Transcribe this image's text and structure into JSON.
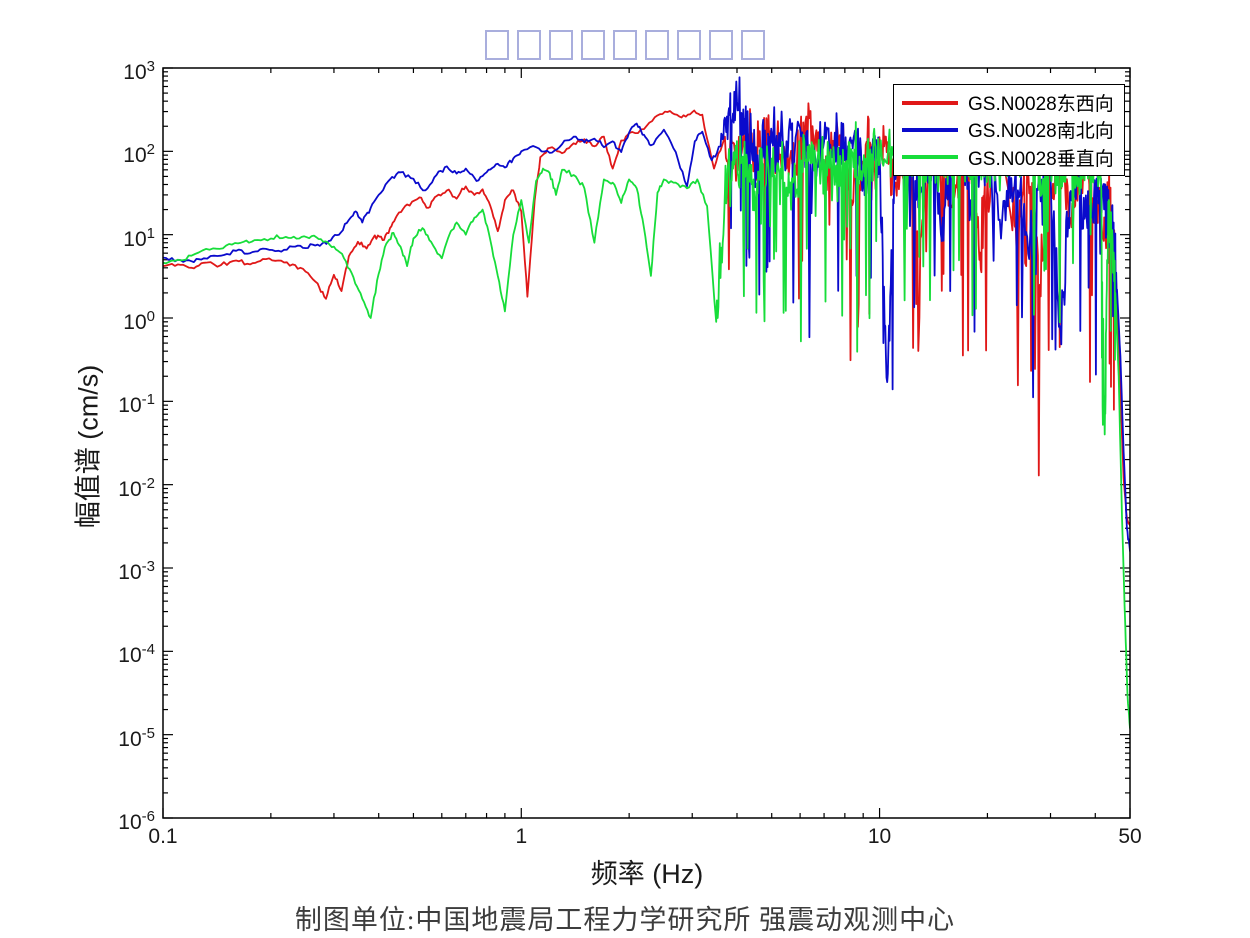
{
  "chart_data": {
    "type": "line",
    "title": {
      "rendered_as_missing_glyph_boxes": true,
      "box_count": 9,
      "box_color": "#a9aedd"
    },
    "xlabel": "频率 (Hz)",
    "ylabel": "幅值谱 (cm/s)",
    "caption": "制图单位:中国地震局工程力学研究所 强震动观测中心",
    "x_scale": "log",
    "y_scale": "log",
    "xlim": [
      0.1,
      50
    ],
    "ylim": [
      1e-06,
      1000
    ],
    "grid": false,
    "box": true,
    "x_ticks": [
      {
        "value": 0.1,
        "label": "0.1"
      },
      {
        "value": 1,
        "label": "1"
      },
      {
        "value": 10,
        "label": "10"
      },
      {
        "value": 50,
        "label": "50"
      }
    ],
    "y_tick_exponents": [
      3,
      2,
      1,
      0,
      -1,
      -2,
      -3,
      -4,
      -5,
      -6
    ],
    "legend": {
      "position": "top-right",
      "border_color": "#000000"
    },
    "hf_texture": {
      "f_start": 3.5,
      "f_end": 45,
      "samples_per_segment": 12,
      "jitter_decades": 0.45,
      "deep_spike_probability": 0.09,
      "lf_jitter_decades": 0.035,
      "seed": 11
    },
    "series": [
      {
        "name": "GS.N0028东西向",
        "color": "#e01818",
        "points": [
          [
            0.1,
            4.2
          ],
          [
            0.11,
            4.4
          ],
          [
            0.12,
            4.0
          ],
          [
            0.13,
            4.6
          ],
          [
            0.145,
            4.3
          ],
          [
            0.16,
            4.9
          ],
          [
            0.175,
            4.4
          ],
          [
            0.19,
            5.1
          ],
          [
            0.21,
            4.9
          ],
          [
            0.23,
            4.4
          ],
          [
            0.25,
            3.6
          ],
          [
            0.27,
            2.6
          ],
          [
            0.285,
            1.7
          ],
          [
            0.3,
            3.3
          ],
          [
            0.315,
            2.1
          ],
          [
            0.33,
            5.5
          ],
          [
            0.35,
            8.2
          ],
          [
            0.37,
            6.8
          ],
          [
            0.39,
            9.8
          ],
          [
            0.41,
            8.6
          ],
          [
            0.43,
            12
          ],
          [
            0.45,
            17
          ],
          [
            0.48,
            23
          ],
          [
            0.52,
            28
          ],
          [
            0.55,
            21
          ],
          [
            0.58,
            29
          ],
          [
            0.62,
            34
          ],
          [
            0.66,
            27
          ],
          [
            0.7,
            38
          ],
          [
            0.74,
            30
          ],
          [
            0.78,
            35
          ],
          [
            0.82,
            22
          ],
          [
            0.86,
            11
          ],
          [
            0.9,
            26
          ],
          [
            0.95,
            34
          ],
          [
            1.0,
            19
          ],
          [
            1.04,
            1.8
          ],
          [
            1.09,
            26
          ],
          [
            1.13,
            85
          ],
          [
            1.2,
            110
          ],
          [
            1.3,
            95
          ],
          [
            1.4,
            125
          ],
          [
            1.5,
            140
          ],
          [
            1.6,
            115
          ],
          [
            1.7,
            150
          ],
          [
            1.8,
            62
          ],
          [
            1.9,
            135
          ],
          [
            2.0,
            165
          ],
          [
            2.2,
            185
          ],
          [
            2.4,
            270
          ],
          [
            2.6,
            305
          ],
          [
            2.8,
            255
          ],
          [
            3.0,
            295
          ],
          [
            3.2,
            275
          ],
          [
            3.45,
            62
          ],
          [
            3.7,
            150
          ],
          [
            4.0,
            92
          ],
          [
            4.3,
            160
          ],
          [
            4.6,
            115
          ],
          [
            5.0,
            170
          ],
          [
            5.5,
            62
          ],
          [
            6.0,
            130
          ],
          [
            6.5,
            200
          ],
          [
            7.0,
            52
          ],
          [
            7.5,
            155
          ],
          [
            8.0,
            118
          ],
          [
            8.6,
            32
          ],
          [
            9.2,
            130
          ],
          [
            9.7,
            62
          ],
          [
            10.3,
            115
          ],
          [
            11,
            42
          ],
          [
            12,
            88
          ],
          [
            13,
            9
          ],
          [
            14,
            70
          ],
          [
            15,
            105
          ],
          [
            16,
            22
          ],
          [
            17,
            62
          ],
          [
            18,
            88
          ],
          [
            19,
            5
          ],
          [
            20,
            52
          ],
          [
            22,
            85
          ],
          [
            24,
            12
          ],
          [
            26,
            58
          ],
          [
            28,
            2.5
          ],
          [
            30,
            42
          ],
          [
            32,
            75
          ],
          [
            34,
            16
          ],
          [
            36,
            48
          ],
          [
            38,
            80
          ],
          [
            40,
            22
          ],
          [
            42,
            9
          ],
          [
            43.5,
            28
          ],
          [
            45,
            9
          ],
          [
            46,
            1.2
          ],
          [
            47,
            0.12
          ],
          [
            48,
            0.012
          ],
          [
            49,
            0.004
          ],
          [
            50,
            0.0032
          ]
        ]
      },
      {
        "name": "GS.N0028南北向",
        "color": "#0a0acc",
        "points": [
          [
            0.1,
            5.3
          ],
          [
            0.11,
            5.0
          ],
          [
            0.12,
            4.8
          ],
          [
            0.13,
            5.2
          ],
          [
            0.145,
            5.6
          ],
          [
            0.16,
            6.4
          ],
          [
            0.175,
            6.0
          ],
          [
            0.19,
            6.8
          ],
          [
            0.21,
            6.4
          ],
          [
            0.23,
            7.2
          ],
          [
            0.25,
            6.9
          ],
          [
            0.27,
            7.6
          ],
          [
            0.29,
            8.4
          ],
          [
            0.31,
            10
          ],
          [
            0.33,
            15
          ],
          [
            0.345,
            19
          ],
          [
            0.36,
            14
          ],
          [
            0.38,
            21
          ],
          [
            0.4,
            30
          ],
          [
            0.43,
            46
          ],
          [
            0.46,
            56
          ],
          [
            0.5,
            47
          ],
          [
            0.54,
            34
          ],
          [
            0.58,
            52
          ],
          [
            0.62,
            66
          ],
          [
            0.66,
            54
          ],
          [
            0.7,
            62
          ],
          [
            0.75,
            44
          ],
          [
            0.8,
            56
          ],
          [
            0.85,
            70
          ],
          [
            0.9,
            64
          ],
          [
            0.95,
            82
          ],
          [
            1.0,
            100
          ],
          [
            1.1,
            112
          ],
          [
            1.2,
            96
          ],
          [
            1.3,
            122
          ],
          [
            1.4,
            150
          ],
          [
            1.5,
            128
          ],
          [
            1.6,
            142
          ],
          [
            1.7,
            112
          ],
          [
            1.8,
            132
          ],
          [
            1.9,
            98
          ],
          [
            2.0,
            168
          ],
          [
            2.1,
            215
          ],
          [
            2.2,
            158
          ],
          [
            2.3,
            118
          ],
          [
            2.5,
            182
          ],
          [
            2.7,
            98
          ],
          [
            2.9,
            38
          ],
          [
            3.05,
            132
          ],
          [
            3.2,
            172
          ],
          [
            3.4,
            78
          ],
          [
            3.6,
            115
          ],
          [
            3.8,
            330
          ],
          [
            4.0,
            400
          ],
          [
            4.2,
            245
          ],
          [
            4.4,
            98
          ],
          [
            4.6,
            58
          ],
          [
            4.8,
            112
          ],
          [
            5.0,
            158
          ],
          [
            5.5,
            132
          ],
          [
            6.0,
            190
          ],
          [
            6.5,
            58
          ],
          [
            7.0,
            132
          ],
          [
            7.5,
            168
          ],
          [
            8.0,
            78
          ],
          [
            8.5,
            160
          ],
          [
            9.0,
            42
          ],
          [
            9.5,
            112
          ],
          [
            10,
            88
          ],
          [
            10.5,
            0.17
          ],
          [
            11,
            62
          ],
          [
            12,
            108
          ],
          [
            13,
            32
          ],
          [
            14,
            78
          ],
          [
            15,
            16
          ],
          [
            16,
            68
          ],
          [
            17,
            98
          ],
          [
            18,
            26
          ],
          [
            19,
            58
          ],
          [
            20,
            88
          ],
          [
            22,
            16
          ],
          [
            24,
            68
          ],
          [
            26,
            6
          ],
          [
            28,
            42
          ],
          [
            30,
            58
          ],
          [
            32,
            0.7
          ],
          [
            34,
            32
          ],
          [
            36,
            48
          ],
          [
            38,
            12
          ],
          [
            40,
            26
          ],
          [
            42,
            38
          ],
          [
            44,
            9
          ],
          [
            45,
            14
          ],
          [
            46,
            2.2
          ],
          [
            47,
            0.35
          ],
          [
            48,
            0.025
          ],
          [
            49,
            0.003
          ],
          [
            50,
            0.0016
          ]
        ]
      },
      {
        "name": "GS.N0028垂直向",
        "color": "#17dd3a",
        "points": [
          [
            0.1,
            4.6
          ],
          [
            0.11,
            5.0
          ],
          [
            0.12,
            5.6
          ],
          [
            0.135,
            6.6
          ],
          [
            0.15,
            7.4
          ],
          [
            0.165,
            8.0
          ],
          [
            0.18,
            8.6
          ],
          [
            0.2,
            9.0
          ],
          [
            0.22,
            9.4
          ],
          [
            0.24,
            9.0
          ],
          [
            0.26,
            9.6
          ],
          [
            0.28,
            8.2
          ],
          [
            0.3,
            7.2
          ],
          [
            0.32,
            5.2
          ],
          [
            0.34,
            3.1
          ],
          [
            0.36,
            1.7
          ],
          [
            0.38,
            1.0
          ],
          [
            0.4,
            3.4
          ],
          [
            0.42,
            7.8
          ],
          [
            0.44,
            10.5
          ],
          [
            0.46,
            7.2
          ],
          [
            0.48,
            4.2
          ],
          [
            0.5,
            9.0
          ],
          [
            0.53,
            12
          ],
          [
            0.56,
            8.2
          ],
          [
            0.6,
            5.2
          ],
          [
            0.63,
            10
          ],
          [
            0.66,
            14
          ],
          [
            0.7,
            10
          ],
          [
            0.74,
            16
          ],
          [
            0.78,
            20
          ],
          [
            0.82,
            8.5
          ],
          [
            0.86,
            3.2
          ],
          [
            0.9,
            1.2
          ],
          [
            0.95,
            10
          ],
          [
            1.0,
            26
          ],
          [
            1.05,
            8
          ],
          [
            1.1,
            44
          ],
          [
            1.15,
            62
          ],
          [
            1.2,
            55
          ],
          [
            1.25,
            30
          ],
          [
            1.3,
            60
          ],
          [
            1.4,
            52
          ],
          [
            1.5,
            36
          ],
          [
            1.6,
            8
          ],
          [
            1.7,
            46
          ],
          [
            1.8,
            42
          ],
          [
            1.9,
            24
          ],
          [
            2.0,
            46
          ],
          [
            2.1,
            36
          ],
          [
            2.2,
            12
          ],
          [
            2.3,
            3.2
          ],
          [
            2.4,
            32
          ],
          [
            2.5,
            46
          ],
          [
            2.7,
            42
          ],
          [
            2.9,
            36
          ],
          [
            3.1,
            46
          ],
          [
            3.3,
            22
          ],
          [
            3.5,
            0.9
          ],
          [
            3.7,
            32
          ],
          [
            3.9,
            62
          ],
          [
            4.1,
            72
          ],
          [
            4.3,
            52
          ],
          [
            4.5,
            26
          ],
          [
            4.7,
            72
          ],
          [
            5.0,
            82
          ],
          [
            5.3,
            62
          ],
          [
            5.6,
            32
          ],
          [
            6.0,
            72
          ],
          [
            6.4,
            92
          ],
          [
            6.8,
            62
          ],
          [
            7.2,
            82
          ],
          [
            7.6,
            42
          ],
          [
            8.0,
            72
          ],
          [
            8.5,
            105
          ],
          [
            9.0,
            62
          ],
          [
            9.5,
            92
          ],
          [
            10,
            72
          ],
          [
            11,
            95
          ],
          [
            12,
            62
          ],
          [
            13,
            100
          ],
          [
            14,
            72
          ],
          [
            15,
            52
          ],
          [
            16,
            92
          ],
          [
            17,
            62
          ],
          [
            18,
            100
          ],
          [
            19,
            72
          ],
          [
            20,
            92
          ],
          [
            22,
            62
          ],
          [
            24,
            100
          ],
          [
            26,
            72
          ],
          [
            28,
            52
          ],
          [
            30,
            92
          ],
          [
            32,
            62
          ],
          [
            34,
            82
          ],
          [
            36,
            45
          ],
          [
            38,
            72
          ],
          [
            40,
            90
          ],
          [
            41.5,
            40
          ],
          [
            42.5,
            0.04
          ],
          [
            43.5,
            25
          ],
          [
            44.5,
            9
          ],
          [
            45.5,
            2
          ],
          [
            46.5,
            0.2
          ],
          [
            47.5,
            0.004
          ],
          [
            48.5,
            0.0002
          ],
          [
            49.2,
            3e-05
          ],
          [
            50,
            1.2e-05
          ]
        ]
      }
    ]
  }
}
